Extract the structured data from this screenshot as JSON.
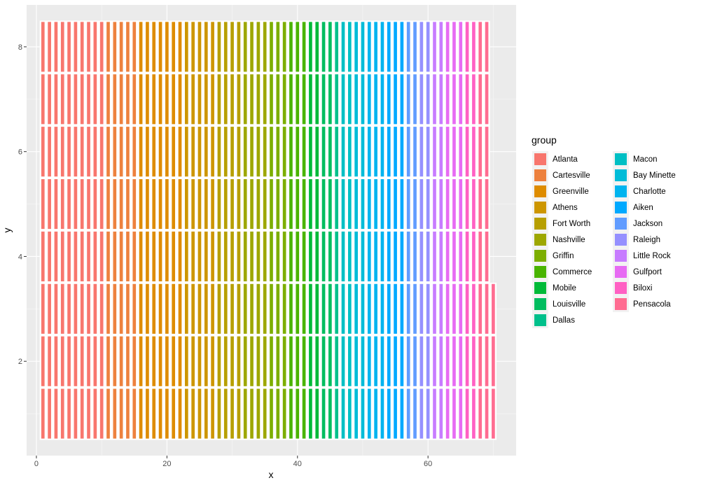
{
  "chart_data": {
    "type": "heatmap",
    "xlabel": "x",
    "ylabel": "y",
    "xlim": [
      -1.5,
      73.5
    ],
    "ylim": [
      0.2,
      8.8
    ],
    "x_ticks": [
      0,
      20,
      40,
      60
    ],
    "y_ticks": [
      2,
      4,
      6,
      8
    ],
    "grid": true,
    "legend_title": "group",
    "legend_position": "right",
    "rows": [
      {
        "y": 1,
        "x_min": 1,
        "x_max": 70
      },
      {
        "y": 2,
        "x_min": 1,
        "x_max": 70
      },
      {
        "y": 3,
        "x_min": 1,
        "x_max": 70
      },
      {
        "y": 4,
        "x_min": 1,
        "x_max": 69
      },
      {
        "y": 5,
        "x_min": 1,
        "x_max": 69
      },
      {
        "y": 6,
        "x_min": 1,
        "x_max": 69
      },
      {
        "y": 7,
        "x_min": 1,
        "x_max": 69
      },
      {
        "y": 8,
        "x_min": 1,
        "x_max": 69
      }
    ],
    "tile_width": 0.5,
    "tile_height": 0.95,
    "groups": [
      {
        "name": "Atlanta",
        "color": "#F8766D",
        "x_from": 1,
        "x_to": 10
      },
      {
        "name": "Cartesville",
        "color": "#ED813E",
        "x_from": 11,
        "x_to": 15
      },
      {
        "name": "Greenville",
        "color": "#DE8C00",
        "x_from": 16,
        "x_to": 22
      },
      {
        "name": "Athens",
        "color": "#CD9600",
        "x_from": 23,
        "x_to": 27
      },
      {
        "name": "Fort Worth",
        "color": "#B79F00",
        "x_from": 28,
        "x_to": 31
      },
      {
        "name": "Nashville",
        "color": "#9DA700",
        "x_from": 32,
        "x_to": 35
      },
      {
        "name": "Griffin",
        "color": "#7CAE00",
        "x_from": 36,
        "x_to": 38
      },
      {
        "name": "Commerce",
        "color": "#49B400",
        "x_from": 39,
        "x_to": 41
      },
      {
        "name": "Mobile",
        "color": "#00BA38",
        "x_from": 42,
        "x_to": 43
      },
      {
        "name": "Louisville",
        "color": "#00BD5F",
        "x_from": 44,
        "x_to": 45
      },
      {
        "name": "Dallas",
        "color": "#00C08B",
        "x_from": 46,
        "x_to": 46
      },
      {
        "name": "Macon",
        "color": "#00BFC4",
        "x_from": 47,
        "x_to": 48
      },
      {
        "name": "Bay Minette",
        "color": "#00BCD8",
        "x_from": 49,
        "x_to": 50
      },
      {
        "name": "Charlotte",
        "color": "#00B4EF",
        "x_from": 51,
        "x_to": 53
      },
      {
        "name": "Aiken",
        "color": "#00A9FF",
        "x_from": 54,
        "x_to": 56
      },
      {
        "name": "Jackson",
        "color": "#619CFF",
        "x_from": 57,
        "x_to": 58
      },
      {
        "name": "Raleigh",
        "color": "#9590FF",
        "x_from": 59,
        "x_to": 60
      },
      {
        "name": "Little Rock",
        "color": "#C77CFF",
        "x_from": 61,
        "x_to": 62
      },
      {
        "name": "Gulfport",
        "color": "#E76BF3",
        "x_from": 63,
        "x_to": 65
      },
      {
        "name": "Biloxi",
        "color": "#FF61C3",
        "x_from": 66,
        "x_to": 67
      },
      {
        "name": "Pensacola",
        "color": "#FF6C91",
        "x_from": 68,
        "x_to": 70
      }
    ]
  }
}
